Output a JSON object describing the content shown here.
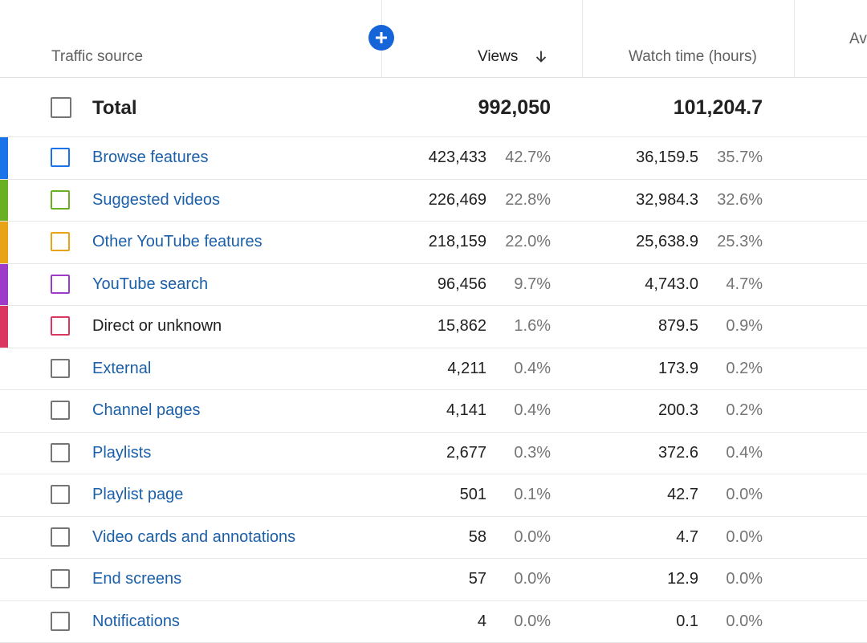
{
  "header": {
    "traffic_source": "Traffic source",
    "views": "Views",
    "watch_time": "Watch time (hours)",
    "next_col_partial": "Av"
  },
  "total": {
    "label": "Total",
    "views": "992,050",
    "watch_time": "101,204.7"
  },
  "rows": [
    {
      "label": "Browse features",
      "views": "423,433",
      "views_pct": "42.7%",
      "watch": "36,159.5",
      "watch_pct": "35.7%",
      "color": "#1a73e8",
      "link": true
    },
    {
      "label": "Suggested videos",
      "views": "226,469",
      "views_pct": "22.8%",
      "watch": "32,984.3",
      "watch_pct": "32.6%",
      "color": "#6ab023",
      "link": true
    },
    {
      "label": "Other YouTube features",
      "views": "218,159",
      "views_pct": "22.0%",
      "watch": "25,638.9",
      "watch_pct": "25.3%",
      "color": "#e8a317",
      "link": true
    },
    {
      "label": "YouTube search",
      "views": "96,456",
      "views_pct": "9.7%",
      "watch": "4,743.0",
      "watch_pct": "4.7%",
      "color": "#9c3cc9",
      "link": true
    },
    {
      "label": "Direct or unknown",
      "views": "15,862",
      "views_pct": "1.6%",
      "watch": "879.5",
      "watch_pct": "0.9%",
      "color": "#d93760",
      "link": false
    },
    {
      "label": "External",
      "views": "4,211",
      "views_pct": "0.4%",
      "watch": "173.9",
      "watch_pct": "0.2%",
      "color": "",
      "link": true
    },
    {
      "label": "Channel pages",
      "views": "4,141",
      "views_pct": "0.4%",
      "watch": "200.3",
      "watch_pct": "0.2%",
      "color": "",
      "link": true
    },
    {
      "label": "Playlists",
      "views": "2,677",
      "views_pct": "0.3%",
      "watch": "372.6",
      "watch_pct": "0.4%",
      "color": "",
      "link": true
    },
    {
      "label": "Playlist page",
      "views": "501",
      "views_pct": "0.1%",
      "watch": "42.7",
      "watch_pct": "0.0%",
      "color": "",
      "link": true
    },
    {
      "label": "Video cards and annotations",
      "views": "58",
      "views_pct": "0.0%",
      "watch": "4.7",
      "watch_pct": "0.0%",
      "color": "",
      "link": true
    },
    {
      "label": "End screens",
      "views": "57",
      "views_pct": "0.0%",
      "watch": "12.9",
      "watch_pct": "0.0%",
      "color": "",
      "link": true
    },
    {
      "label": "Notifications",
      "views": "4",
      "views_pct": "0.0%",
      "watch": "0.1",
      "watch_pct": "0.0%",
      "color": "",
      "link": true
    }
  ],
  "icons": {
    "add": "add-column-icon",
    "sort": "arrow-down-icon"
  }
}
